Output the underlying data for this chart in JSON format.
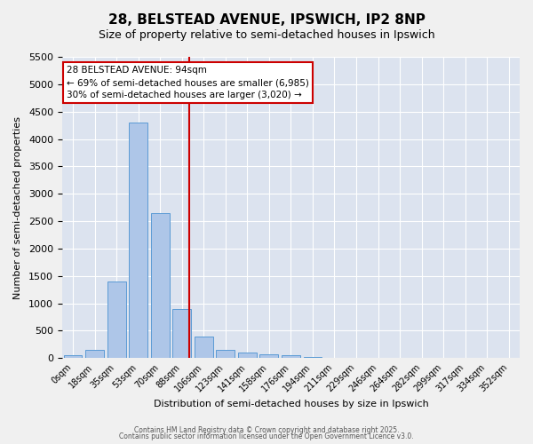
{
  "title": "28, BELSTEAD AVENUE, IPSWICH, IP2 8NP",
  "subtitle": "Size of property relative to semi-detached houses in Ipswich",
  "xlabel": "Distribution of semi-detached houses by size in Ipswich",
  "ylabel": "Number of semi-detached properties",
  "bar_labels": [
    "0sqm",
    "18sqm",
    "35sqm",
    "53sqm",
    "70sqm",
    "88sqm",
    "106sqm",
    "123sqm",
    "141sqm",
    "158sqm",
    "176sqm",
    "194sqm",
    "211sqm",
    "229sqm",
    "246sqm",
    "264sqm",
    "282sqm",
    "299sqm",
    "317sqm",
    "334sqm",
    "352sqm"
  ],
  "bar_values": [
    50,
    150,
    1400,
    4300,
    2650,
    900,
    400,
    150,
    100,
    75,
    50,
    25,
    10,
    5,
    2,
    1,
    0,
    0,
    0,
    0,
    0
  ],
  "bar_color": "#aec6e8",
  "bar_edge_color": "#5b9bd5",
  "ylim": [
    0,
    5500
  ],
  "yticks": [
    0,
    500,
    1000,
    1500,
    2000,
    2500,
    3000,
    3500,
    4000,
    4500,
    5000,
    5500
  ],
  "vline_x": 5.33,
  "vline_color": "#cc0000",
  "annotation_title": "28 BELSTEAD AVENUE: 94sqm",
  "annotation_line1": "← 69% of semi-detached houses are smaller (6,985)",
  "annotation_line2": "30% of semi-detached houses are larger (3,020) →",
  "annotation_box_color": "#ffffff",
  "annotation_box_edge": "#cc0000",
  "bg_color": "#dce3ef",
  "fig_bg_color": "#f0f0f0",
  "footer1": "Contains HM Land Registry data © Crown copyright and database right 2025.",
  "footer2": "Contains public sector information licensed under the Open Government Licence v3.0."
}
